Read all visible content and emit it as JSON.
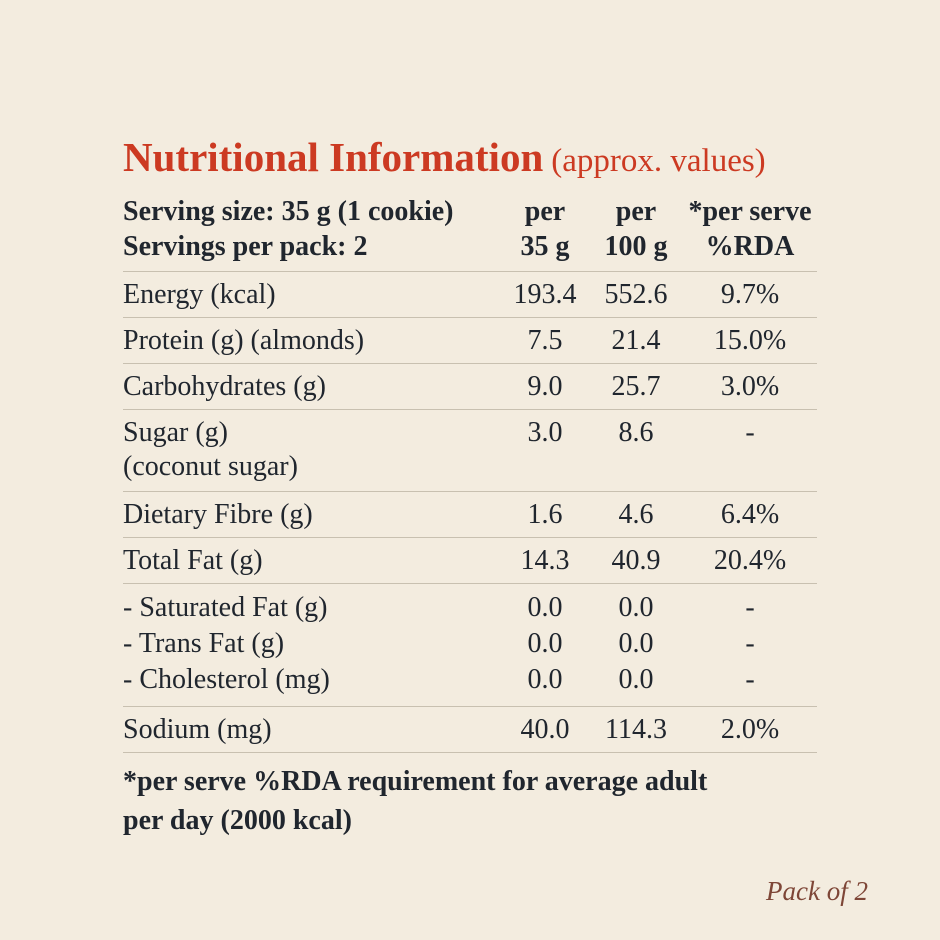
{
  "page": {
    "background_color": "#f3ecdf",
    "text_color": "#20262e",
    "accent_color": "#cc3a22",
    "divider_color": "#c8c0b0",
    "pack_label_color": "#7e4637"
  },
  "title": {
    "main": "Nutritional Information",
    "suffix": "(approx. values)"
  },
  "header": {
    "serving_line1": "Serving size: 35 g (1 cookie)",
    "serving_line2": "Servings per pack: 2",
    "col_per35_line1": "per",
    "col_per35_line2": "35 g",
    "col_per100_line1": "per",
    "col_per100_line2": "100 g",
    "col_rda_line1": "*per serve",
    "col_rda_line2": "%RDA"
  },
  "rows": [
    {
      "label": "Energy (kcal)",
      "per_35g": "193.4",
      "per_100g": "552.6",
      "rda": "9.7%"
    },
    {
      "label": "Protein (g) (almonds)",
      "per_35g": "7.5",
      "per_100g": "21.4",
      "rda": "15.0%"
    },
    {
      "label": "Carbohydrates (g)",
      "per_35g": "9.0",
      "per_100g": "25.7",
      "rda": "3.0%"
    },
    {
      "label": "Sugar (g)",
      "label_line2": "(coconut sugar)",
      "per_35g": "3.0",
      "per_100g": "8.6",
      "rda": "-"
    },
    {
      "label": "Dietary Fibre (g)",
      "per_35g": "1.6",
      "per_100g": "4.6",
      "rda": "6.4%"
    },
    {
      "label": "Total Fat (g)",
      "per_35g": "14.3",
      "per_100g": "40.9",
      "rda": "20.4%"
    },
    {
      "group": [
        {
          "label": "- Saturated Fat (g)",
          "per_35g": "0.0",
          "per_100g": "0.0",
          "rda": "-"
        },
        {
          "label": "- Trans Fat (g)",
          "per_35g": "0.0",
          "per_100g": "0.0",
          "rda": "-"
        },
        {
          "label": "- Cholesterol (mg)",
          "per_35g": "0.0",
          "per_100g": "0.0",
          "rda": "-"
        }
      ]
    },
    {
      "label": "Sodium (mg)",
      "per_35g": "40.0",
      "per_100g": "114.3",
      "rda": "2.0%"
    }
  ],
  "footnote": "*per serve %RDA requirement for average adult per day (2000 kcal)",
  "pack_label": "Pack of 2"
}
